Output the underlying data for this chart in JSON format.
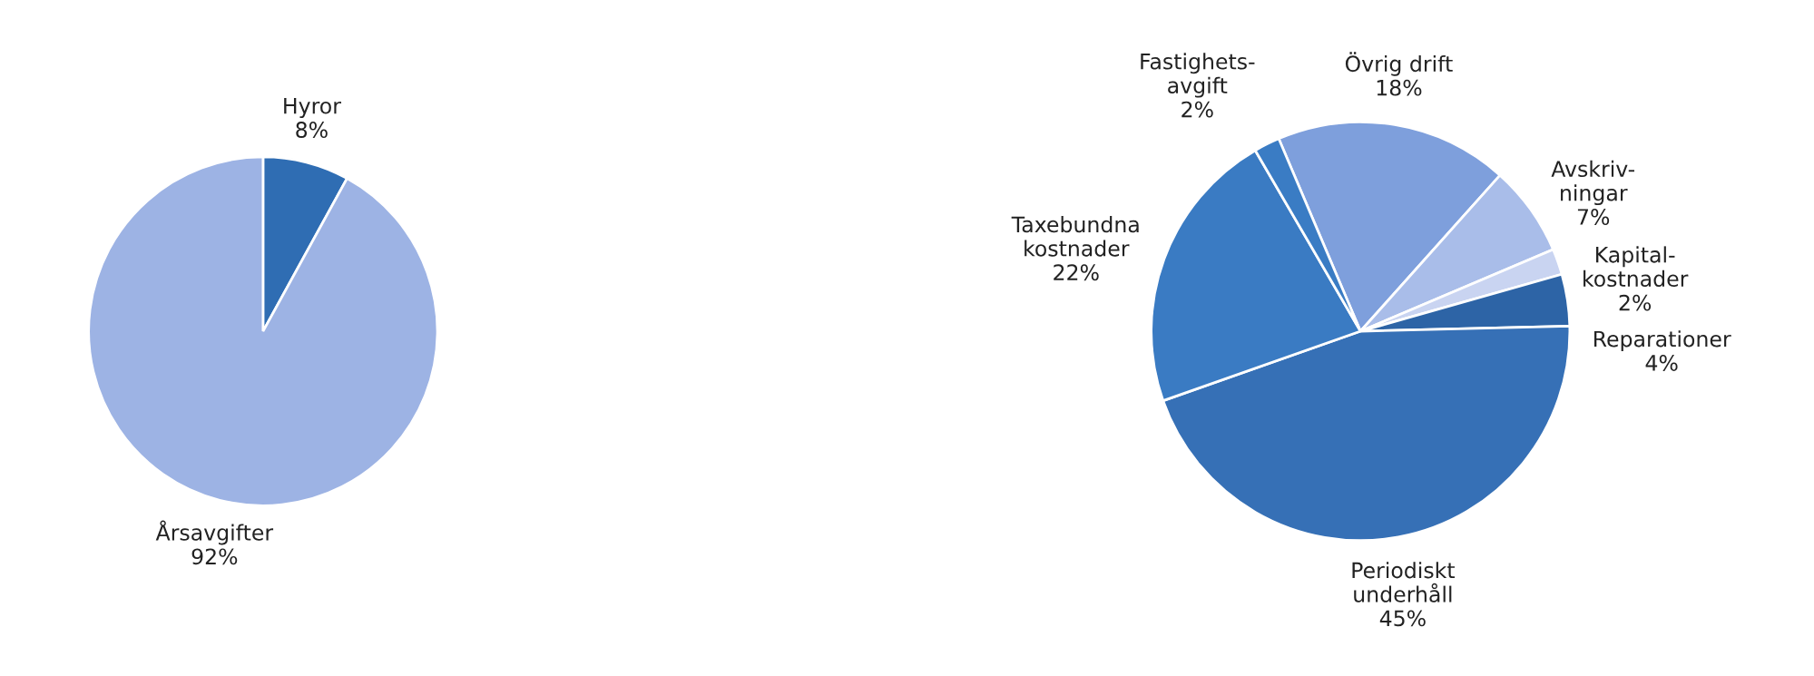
{
  "chart_data": [
    {
      "type": "pie",
      "categories": [
        "Hyror",
        "Årsavgifter"
      ],
      "values": [
        8,
        92
      ],
      "value_labels": [
        "8%",
        "92%"
      ],
      "colors": [
        "#2f6db3",
        "#9db3e4"
      ]
    },
    {
      "type": "pie",
      "categories": [
        "Övrig drift",
        "Avskriv-\nningar",
        "Kapital-\nkostnader",
        "Reparationer",
        "Periodiskt\nunderhåll",
        "Taxebundna\nkostnader",
        "Fastighets-\navgift"
      ],
      "values": [
        18,
        7,
        2,
        4,
        45,
        22,
        2
      ],
      "value_labels": [
        "18%",
        "7%",
        "2%",
        "4%",
        "45%",
        "22%",
        "2%"
      ],
      "colors": [
        "#7e9fdc",
        "#a9bde9",
        "#c9d4f1",
        "#2d64a6",
        "#3670b6",
        "#3a7bc3",
        "#3a7cc4"
      ]
    }
  ]
}
